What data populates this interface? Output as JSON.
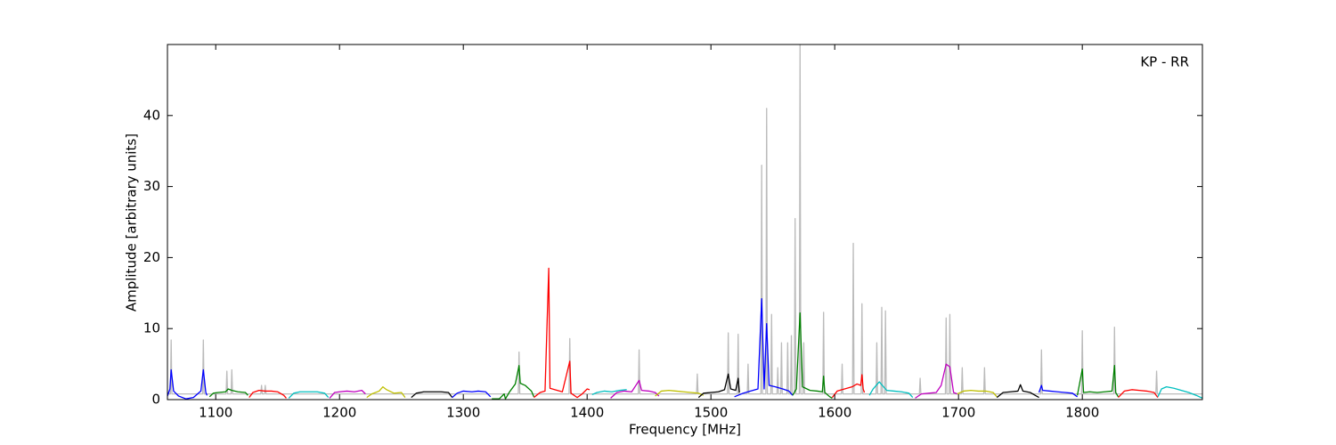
{
  "chart_data": {
    "type": "line",
    "annotation": "KP - RR",
    "x_label": "Frequency [MHz]",
    "y_label": "Amplitude [arbitrary units]",
    "xlim": [
      1061,
      1897
    ],
    "ylim": [
      0,
      50
    ],
    "xticks": [
      1100,
      1200,
      1300,
      1400,
      1500,
      1600,
      1700,
      1800
    ],
    "yticks": [
      0,
      10,
      20,
      30,
      40
    ],
    "series": [
      {
        "color": "#bbbbbb",
        "x": [
          1061,
          1063.4,
          1064,
          1064.6,
          1089.4,
          1090,
          1090.6,
          1108.4,
          1109,
          1109.6,
          1112.4,
          1113,
          1113.6,
          1136.4,
          1137,
          1137.6,
          1139.4,
          1140,
          1140.6,
          1344.4,
          1345,
          1345.6,
          1385.4,
          1386,
          1386.6,
          1441.4,
          1442,
          1442.6,
          1488.4,
          1489,
          1489.6,
          1513.4,
          1514,
          1514.6,
          1521.4,
          1522,
          1522.6,
          1529.4,
          1530,
          1530.6,
          1540.4,
          1541,
          1541.6,
          1544.4,
          1545,
          1545.6,
          1548.4,
          1549,
          1549.6,
          1553.4,
          1554,
          1554.6,
          1556.4,
          1557,
          1557.6,
          1561.4,
          1562,
          1562.6,
          1564.4,
          1565,
          1565.6,
          1567.4,
          1568,
          1568.6,
          1571.4,
          1572,
          1572.6,
          1574.4,
          1575,
          1575.6,
          1590.4,
          1591,
          1591.6,
          1605.4,
          1606,
          1606.6,
          1614.4,
          1615,
          1615.6,
          1621.4,
          1622,
          1622.6,
          1633.4,
          1634,
          1634.6,
          1637.4,
          1638,
          1638.6,
          1640.4,
          1641,
          1641.6,
          1668.4,
          1669,
          1669.6,
          1689.4,
          1690,
          1690.6,
          1692.4,
          1693,
          1693.6,
          1702.4,
          1703,
          1703.6,
          1720.4,
          1721,
          1721.6,
          1766.4,
          1767,
          1767.6,
          1799.4,
          1800,
          1800.6,
          1825.4,
          1826,
          1826.6,
          1859.4,
          1860,
          1860.6,
          1897
        ],
        "values": [
          0.8,
          0.8,
          8.4,
          0.8,
          0.8,
          8.4,
          0.8,
          0.8,
          4,
          0.8,
          0.8,
          4.2,
          0.8,
          0.8,
          2,
          0.8,
          0.8,
          2,
          0.8,
          0.8,
          6.7,
          0.8,
          0.8,
          8.6,
          0.8,
          0.8,
          7,
          0.8,
          0.8,
          3.6,
          0.8,
          0.8,
          9.4,
          0.8,
          0.8,
          9.2,
          0.8,
          0.8,
          5,
          0.8,
          0.8,
          33,
          0.8,
          0.8,
          41,
          0.8,
          0.8,
          12,
          0.8,
          0.8,
          4.5,
          0.8,
          0.8,
          8,
          0.8,
          0.8,
          8,
          0.8,
          0.8,
          9,
          0.8,
          0.8,
          25.5,
          0.8,
          0.8,
          50,
          0.8,
          0.8,
          8,
          0.8,
          0.8,
          12.3,
          0.8,
          0.8,
          5,
          0.8,
          0.8,
          22,
          0.8,
          0.8,
          13.5,
          0.8,
          0.8,
          8,
          0.8,
          0.8,
          13,
          0.8,
          0.8,
          12.5,
          0.8,
          0.8,
          3,
          0.8,
          0.8,
          11.5,
          0.8,
          0.8,
          12,
          0.8,
          0.8,
          4.5,
          0.8,
          0.8,
          4.5,
          0.8,
          0.8,
          7,
          0.8,
          0.8,
          9.7,
          0.8,
          0.8,
          10.2,
          0.8,
          0.8,
          4,
          0.8,
          0.8
        ]
      },
      {
        "color": "#0000ff",
        "x": [
          1061,
          1063,
          1064,
          1066,
          1070,
          1076,
          1082,
          1088,
          1090,
          1092,
          1093
        ],
        "values": [
          0.5,
          1.5,
          4.2,
          1.2,
          0.5,
          0.1,
          0.3,
          1.2,
          4.2,
          1,
          0.6
        ]
      },
      {
        "color": "#008000",
        "x": [
          1095,
          1098,
          1102,
          1108,
          1110,
          1113,
          1118,
          1124,
          1126
        ],
        "values": [
          0.4,
          0.9,
          1.0,
          1.1,
          1.5,
          1.3,
          1.1,
          1.0,
          0.6
        ]
      },
      {
        "color": "#ff0000",
        "x": [
          1127,
          1130,
          1135,
          1140,
          1145,
          1150,
          1155,
          1157
        ],
        "values": [
          0.3,
          1.0,
          1.3,
          1.2,
          1.2,
          1.1,
          0.6,
          0.2
        ]
      },
      {
        "color": "#00bfbf",
        "x": [
          1159,
          1163,
          1168,
          1175,
          1182,
          1188,
          1191
        ],
        "values": [
          0.2,
          0.9,
          1.1,
          1.1,
          1.1,
          0.9,
          0.3
        ]
      },
      {
        "color": "#bf00bf",
        "x": [
          1192,
          1196,
          1200,
          1206,
          1212,
          1218,
          1221
        ],
        "values": [
          0.2,
          1.0,
          1.1,
          1.2,
          1.1,
          1.3,
          0.8
        ]
      },
      {
        "color": "#bfbf00",
        "x": [
          1222,
          1226,
          1232,
          1235,
          1238,
          1244,
          1250,
          1253
        ],
        "values": [
          0.3,
          0.8,
          1.2,
          1.8,
          1.4,
          0.9,
          1.0,
          0.3
        ]
      },
      {
        "color": "#000000",
        "x": [
          1258,
          1262,
          1268,
          1275,
          1282,
          1288,
          1291
        ],
        "values": [
          0.3,
          0.9,
          1.1,
          1.1,
          1.1,
          1.0,
          0.3
        ]
      },
      {
        "color": "#0000ff",
        "x": [
          1291,
          1295,
          1300,
          1307,
          1312,
          1318,
          1322
        ],
        "values": [
          0.3,
          0.9,
          1.2,
          1.1,
          1.2,
          1.1,
          0.4
        ]
      },
      {
        "color": "#008000",
        "x": [
          1323,
          1329,
          1333,
          1334,
          1337,
          1342,
          1345,
          1346,
          1350,
          1355,
          1357
        ],
        "values": [
          0.1,
          0.1,
          0.8,
          0.1,
          1.0,
          2.2,
          4.8,
          2.3,
          2.0,
          1.2,
          0.4
        ]
      },
      {
        "color": "#ff0000",
        "x": [
          1357,
          1362,
          1366,
          1369,
          1370,
          1374,
          1380,
          1386,
          1387,
          1392,
          1396,
          1400,
          1402
        ],
        "values": [
          0.3,
          1.0,
          1.2,
          18.5,
          1.6,
          1.4,
          1.1,
          5.4,
          0.9,
          0.3,
          0.8,
          1.5,
          1.4
        ]
      },
      {
        "color": "#00bfbf",
        "x": [
          1404,
          1408,
          1414,
          1420,
          1426,
          1432
        ],
        "values": [
          0.7,
          1.0,
          1.2,
          1.1,
          1.3,
          1.4
        ]
      },
      {
        "color": "#bf00bf",
        "x": [
          1419,
          1424,
          1430,
          1436,
          1442,
          1444,
          1450,
          1455,
          1458
        ],
        "values": [
          0.2,
          1.0,
          1.2,
          1.1,
          2.7,
          1.3,
          1.2,
          1.0,
          0.5
        ]
      },
      {
        "color": "#bfbf00",
        "x": [
          1455,
          1460,
          1466,
          1472,
          1478,
          1484,
          1490,
          1494
        ],
        "values": [
          0.5,
          1.2,
          1.3,
          1.2,
          1.1,
          1.0,
          0.9,
          0.6
        ]
      },
      {
        "color": "#000000",
        "x": [
          1490,
          1494,
          1500,
          1506,
          1511,
          1514,
          1516,
          1520,
          1522,
          1523
        ],
        "values": [
          0.3,
          0.9,
          1.0,
          1.1,
          1.4,
          3.6,
          1.5,
          1.3,
          3.0,
          1.0
        ]
      },
      {
        "color": "#0000ff",
        "x": [
          1519,
          1526,
          1532,
          1538,
          1541,
          1543,
          1545,
          1547,
          1552,
          1558,
          1563,
          1566
        ],
        "values": [
          0.4,
          0.9,
          1.2,
          1.5,
          14.2,
          1.5,
          10.7,
          2.0,
          1.8,
          1.5,
          1.2,
          0.6
        ]
      },
      {
        "color": "#008000",
        "x": [
          1566,
          1569,
          1572,
          1574,
          1580,
          1586,
          1590,
          1591,
          1592,
          1596,
          1598
        ],
        "values": [
          0.6,
          1.5,
          12.2,
          1.8,
          1.3,
          1.2,
          1.1,
          3.3,
          1.0,
          0.4,
          0.2
        ]
      },
      {
        "color": "#ff0000",
        "x": [
          1598,
          1602,
          1608,
          1614,
          1618,
          1621,
          1622,
          1623,
          1624
        ],
        "values": [
          0.3,
          1.2,
          1.5,
          1.8,
          2.2,
          2.0,
          3.5,
          1.5,
          1.0
        ]
      },
      {
        "color": "#00bfbf",
        "x": [
          1628,
          1631,
          1636,
          1642,
          1648,
          1654,
          1660,
          1663
        ],
        "values": [
          0.6,
          1.5,
          2.5,
          1.3,
          1.2,
          1.1,
          0.9,
          0.3
        ]
      },
      {
        "color": "#bf00bf",
        "x": [
          1665,
          1670,
          1676,
          1682,
          1686,
          1690,
          1693,
          1696,
          1699
        ],
        "values": [
          0.2,
          0.8,
          0.9,
          1.0,
          2.0,
          5.0,
          4.6,
          1.0,
          0.8
        ]
      },
      {
        "color": "#bfbf00",
        "x": [
          1699,
          1704,
          1710,
          1716,
          1722,
          1728,
          1731
        ],
        "values": [
          0.8,
          1.2,
          1.3,
          1.2,
          1.2,
          1.0,
          0.4
        ]
      },
      {
        "color": "#000000",
        "x": [
          1731,
          1736,
          1742,
          1748,
          1750,
          1752,
          1758,
          1763,
          1765
        ],
        "values": [
          0.3,
          1.0,
          1.1,
          1.2,
          2.1,
          1.2,
          1.0,
          0.5,
          0.3
        ]
      },
      {
        "color": "#0000ff",
        "x": [
          1765,
          1767,
          1768,
          1774,
          1780,
          1786,
          1792,
          1796
        ],
        "values": [
          1.0,
          2.0,
          1.3,
          1.2,
          1.1,
          1.0,
          0.9,
          0.4
        ]
      },
      {
        "color": "#008000",
        "x": [
          1796,
          1800,
          1801,
          1806,
          1812,
          1818,
          1824,
          1826,
          1827,
          1829
        ],
        "values": [
          0.6,
          4.3,
          1.0,
          1.1,
          1.0,
          1.1,
          1.2,
          4.8,
          1.0,
          0.4
        ]
      },
      {
        "color": "#ff0000",
        "x": [
          1829,
          1834,
          1840,
          1846,
          1852,
          1858,
          1861
        ],
        "values": [
          0.3,
          1.2,
          1.4,
          1.3,
          1.2,
          1.0,
          0.3
        ]
      },
      {
        "color": "#00bfbf",
        "x": [
          1861,
          1864,
          1868,
          1874,
          1880,
          1886,
          1892,
          1897
        ],
        "values": [
          0.4,
          1.5,
          1.8,
          1.6,
          1.3,
          1.0,
          0.6,
          0.2
        ]
      }
    ]
  }
}
